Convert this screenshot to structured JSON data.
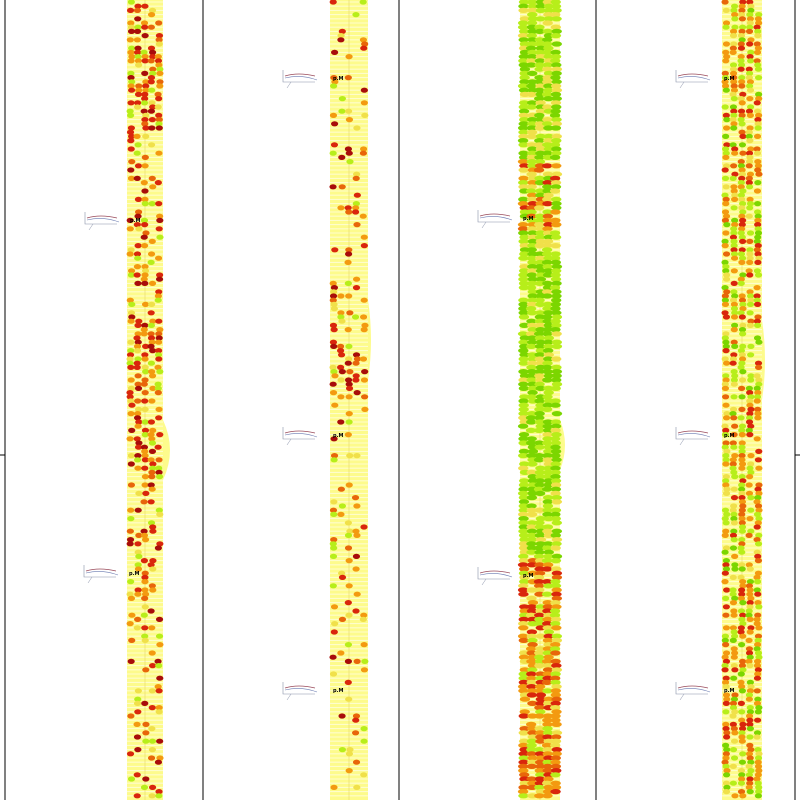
{
  "colors": {
    "background": "#ffffff",
    "divider": "#000000",
    "track": "#fdfb8c",
    "track_line": "#ffffff",
    "green_bright": "#7bd600",
    "green_light": "#b7ee1a",
    "yellow": "#f0e04a",
    "orange": "#f39a10",
    "orange_dark": "#e8660a",
    "red": "#d9260c",
    "red_dark": "#a80d0a",
    "glyph_stroke": "#8890a8"
  },
  "glyph_label": "p.M",
  "panels": [
    {
      "id": "panel-1",
      "dominant": "red"
    },
    {
      "id": "panel-2",
      "dominant": "orange-sparse"
    },
    {
      "id": "panel-3",
      "dominant": "green-then-orange"
    },
    {
      "id": "panel-4",
      "dominant": "orange-mixed"
    }
  ]
}
